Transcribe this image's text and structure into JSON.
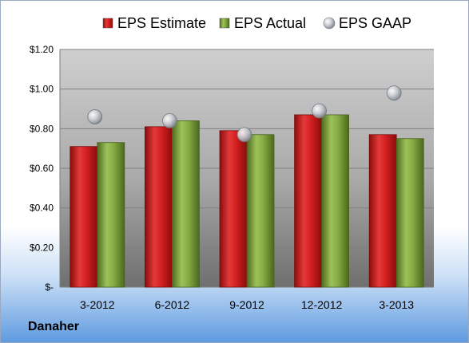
{
  "company": "Danaher",
  "colors": {
    "estimate": "#cc1f1f",
    "actual": "#7fa33a",
    "gaap": "#b9bec6"
  },
  "chart_data": {
    "type": "bar",
    "categories": [
      "3-2012",
      "6-2012",
      "9-2012",
      "12-2012",
      "3-2013"
    ],
    "series": [
      {
        "name": "EPS Estimate",
        "kind": "bar",
        "values": [
          0.71,
          0.81,
          0.79,
          0.87,
          0.77
        ]
      },
      {
        "name": "EPS Actual",
        "kind": "bar",
        "values": [
          0.73,
          0.84,
          0.77,
          0.87,
          0.75
        ]
      },
      {
        "name": "EPS GAAP",
        "kind": "scatter",
        "values": [
          0.86,
          0.84,
          0.77,
          0.89,
          0.98
        ]
      }
    ],
    "ylim": [
      0,
      1.2
    ],
    "yticks": [
      0,
      0.2,
      0.4,
      0.6,
      0.8,
      1.0,
      1.2
    ],
    "ytick_labels": [
      "$-",
      "$0.20",
      "$0.40",
      "$0.60",
      "$0.80",
      "$1.00",
      "$1.20"
    ],
    "legend_position": "top",
    "grid": true
  }
}
